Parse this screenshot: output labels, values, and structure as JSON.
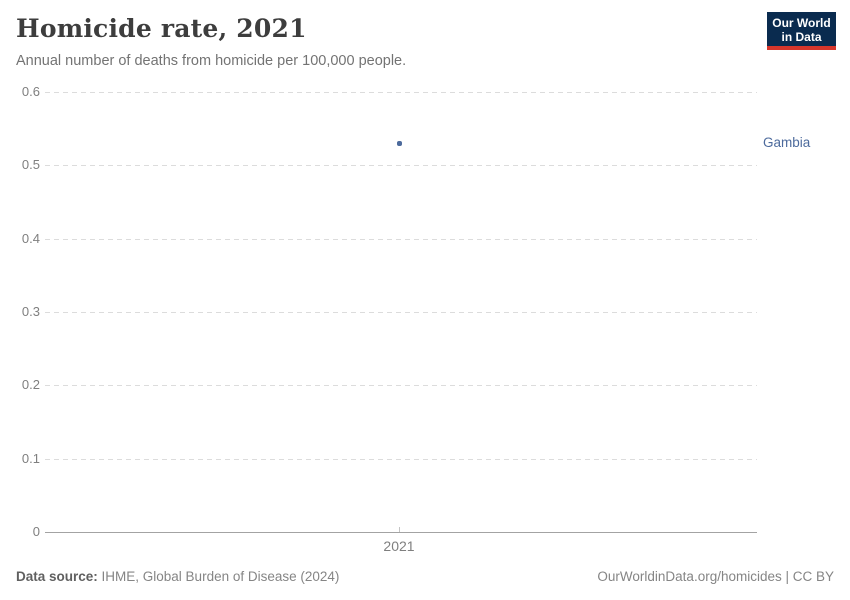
{
  "header": {
    "title": "Homicide rate, 2021",
    "subtitle": "Annual number of deaths from homicide per 100,000 people.",
    "logo": {
      "line1": "Our World",
      "line2": "in Data"
    }
  },
  "chart_data": {
    "type": "scatter",
    "title": "Homicide rate, 2021",
    "x": [
      2021
    ],
    "xtick_labels": [
      "2021"
    ],
    "series": [
      {
        "name": "Gambia",
        "values": [
          0.53
        ]
      }
    ],
    "xlabel": "",
    "ylabel": "",
    "ylim": [
      0,
      0.6
    ],
    "yticks": [
      0,
      0.1,
      0.2,
      0.3,
      0.4,
      0.5,
      0.6
    ],
    "ytick_labels": [
      "0",
      "0.1",
      "0.2",
      "0.3",
      "0.4",
      "0.5",
      "0.6"
    ],
    "grid": "horizontal-dashed",
    "legend_position": "right-of-point",
    "point_color": "#4c6a9c",
    "label_color": "#4c6a9c"
  },
  "colors": {
    "logo_navy": "#0a2b4f",
    "logo_red": "#d7362b",
    "accent_blue": "#4c6a9c"
  },
  "footer": {
    "source_label": "Data source:",
    "source_text": " IHME, Global Burden of Disease (2024)",
    "credit": "OurWorldinData.org/homicides | CC BY"
  }
}
